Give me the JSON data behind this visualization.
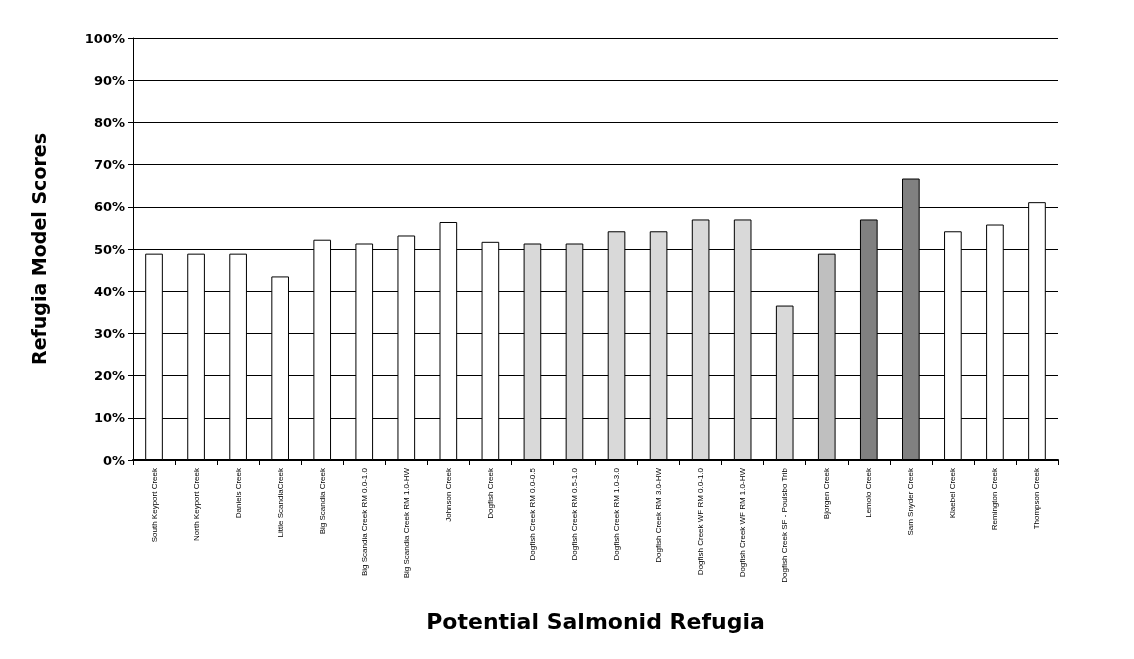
{
  "chart_data": {
    "type": "bar",
    "xlabel": "Potential Salmonid Refugia",
    "ylabel": "Refugia Model Scores",
    "categories": [
      "South Keyport Creek",
      "North Keyport Creek",
      "Daniels Creek",
      "Little ScandiaCreek",
      "Big Scandia Creek",
      "Big Scandia Creek RM 0.0-1.0",
      "Big Scandia Creek RM 1.0-HW",
      "Johnson Creek",
      "Dogfish Creek",
      "Dogfish Creek RM 0.0-0.5",
      "Dogfish Creek RM 0.5-1.0",
      "Dogfish Creek RM 1.0-3.0",
      "Dogfish Creek RM 3.0-HW",
      "Dogfish Creek WF RM 0.0-1.0",
      "Dogfish Creek WF RM 1.0-HW",
      "Dogfish Creek SF - Poulsbo Trib",
      "Bjorgen Creek",
      "Lemolo Creek",
      "Sam Snyder Creek",
      "Klaebel Creek",
      "Remington Creek",
      "Thompson Creek"
    ],
    "values": [
      48.9,
      48.9,
      48.9,
      43.5,
      52.2,
      51.3,
      53.2,
      56.4,
      51.7,
      51.3,
      51.3,
      54.2,
      54.2,
      57.0,
      57.0,
      36.6,
      48.9,
      57.0,
      66.7,
      54.2,
      55.8,
      61.1
    ],
    "colors": [
      "#ffffff",
      "#ffffff",
      "#ffffff",
      "#ffffff",
      "#ffffff",
      "#ffffff",
      "#ffffff",
      "#ffffff",
      "#ffffff",
      "#d9d9d9",
      "#d9d9d9",
      "#d9d9d9",
      "#d9d9d9",
      "#d9d9d9",
      "#d9d9d9",
      "#d9d9d9",
      "#bfbfbf",
      "#808080",
      "#808080",
      "#ffffff",
      "#ffffff",
      "#ffffff"
    ],
    "ylim": [
      0,
      100
    ],
    "yticks": [
      {
        "value": 0,
        "label": "0%"
      },
      {
        "value": 10,
        "label": "10%"
      },
      {
        "value": 20,
        "label": "20%"
      },
      {
        "value": 30,
        "label": "30%"
      },
      {
        "value": 40,
        "label": "40%"
      },
      {
        "value": 50,
        "label": "50%"
      },
      {
        "value": 60,
        "label": "60%"
      },
      {
        "value": 70,
        "label": "70%"
      },
      {
        "value": 80,
        "label": "80%"
      },
      {
        "value": 90,
        "label": "90%"
      },
      {
        "value": 100,
        "label": "100%"
      }
    ],
    "grid": "y"
  }
}
